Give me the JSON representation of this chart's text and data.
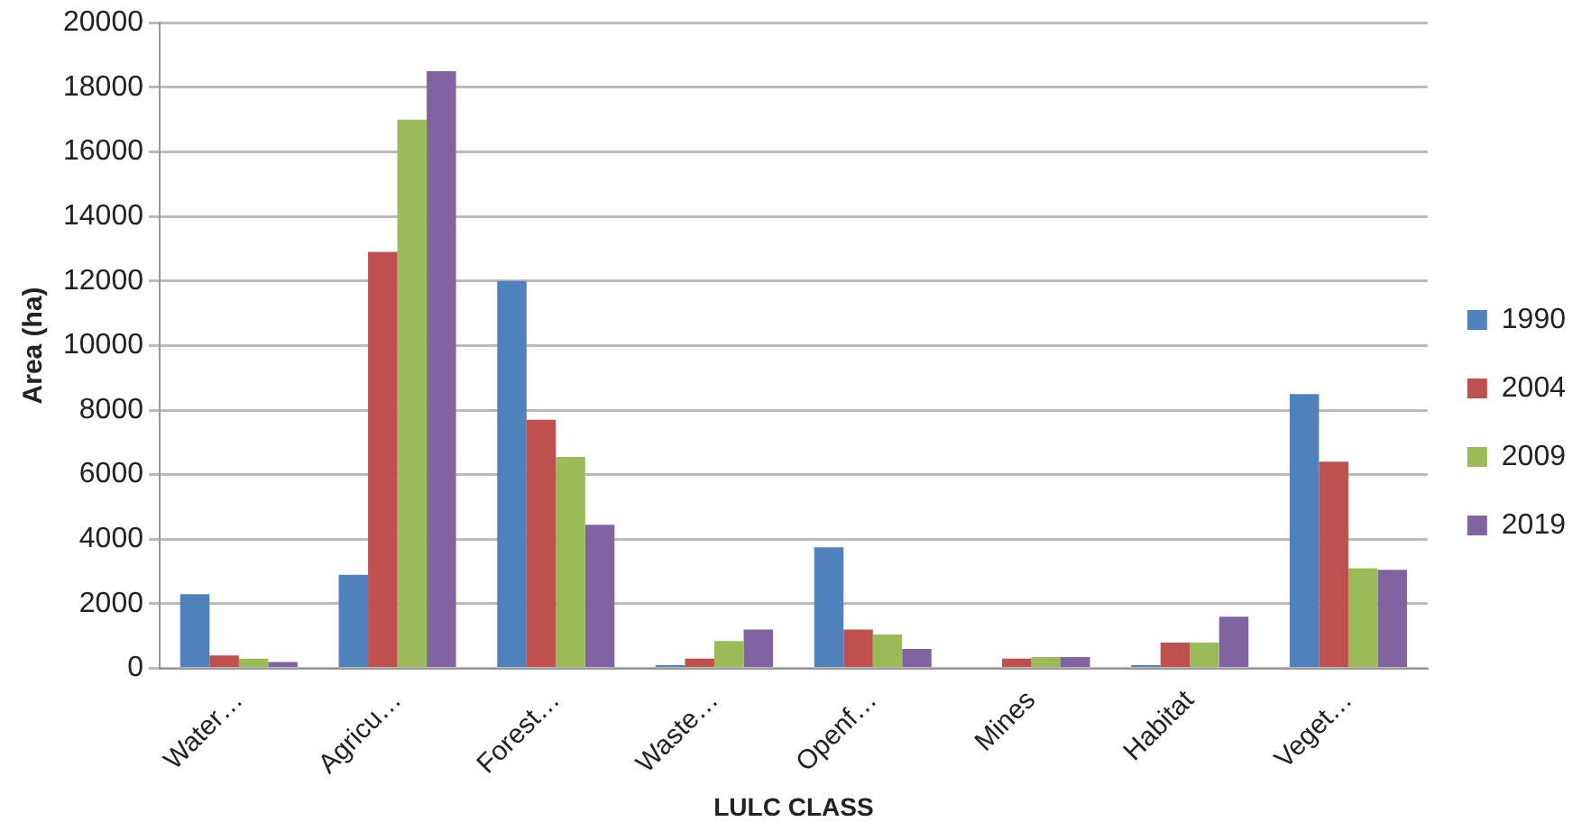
{
  "chart_data": {
    "type": "bar",
    "xlabel": "LULC CLASS",
    "ylabel": "Area (ha)",
    "categories": [
      "Water…",
      "Agricu…",
      "Forest…",
      "Waste…",
      "Openf…",
      "Mines",
      "Habitat",
      "Veget…"
    ],
    "series": [
      {
        "name": "1990",
        "color": "#4f81bd",
        "values": [
          2300,
          2900,
          12000,
          100,
          3750,
          0,
          100,
          8500
        ]
      },
      {
        "name": "2004",
        "color": "#c0504d",
        "values": [
          400,
          12900,
          7700,
          300,
          1200,
          300,
          800,
          6400
        ]
      },
      {
        "name": "2009",
        "color": "#9bbb59",
        "values": [
          300,
          17000,
          6550,
          850,
          1050,
          350,
          800,
          3100
        ]
      },
      {
        "name": "2019",
        "color": "#8064a2",
        "values": [
          200,
          18500,
          4450,
          1200,
          600,
          350,
          1600,
          3050
        ]
      }
    ],
    "ylim": [
      0,
      20000
    ],
    "yticks": [
      0,
      2000,
      4000,
      6000,
      8000,
      10000,
      12000,
      14000,
      16000,
      18000,
      20000
    ],
    "grid": "y",
    "legend": "right"
  }
}
